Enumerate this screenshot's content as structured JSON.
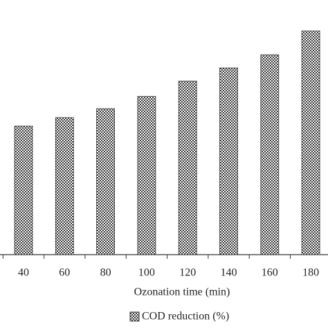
{
  "chart_data": {
    "type": "bar",
    "x_label": "Ozonation time (min)",
    "categories": [
      "40",
      "60",
      "80",
      "100",
      "120",
      "140",
      "160",
      "180"
    ],
    "series": [
      {
        "name": "COD reduction (%)",
        "color": "#333333",
        "values": [
          30.3,
          32.3,
          34.4,
          37.3,
          40.9,
          44.0,
          47.1,
          52.7
        ]
      }
    ],
    "ylim": [
      0,
      60
    ]
  }
}
